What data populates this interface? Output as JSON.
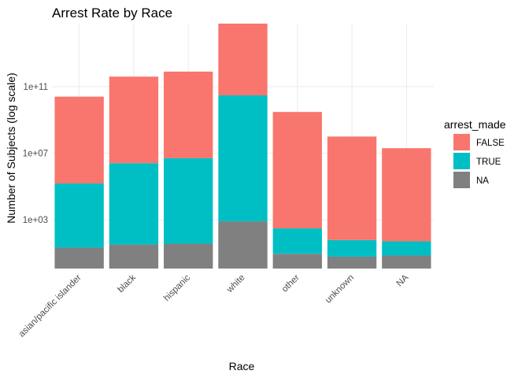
{
  "chart_data": {
    "type": "bar",
    "stacked": true,
    "title": "Arrest Rate by Race",
    "xlabel": "Race",
    "ylabel": "Number of Subjects (log scale)",
    "yscale": "log10",
    "ylim": [
      1,
      30000000000000
    ],
    "yticks": [
      {
        "value": 1000,
        "label": "1e+03"
      },
      {
        "value": 10000000,
        "label": "1e+07"
      },
      {
        "value": 100000000000,
        "label": "1e+11"
      }
    ],
    "categories": [
      "asian/pacific islander",
      "black",
      "hispanic",
      "white",
      "other",
      "unknown",
      "NA"
    ],
    "series": [
      {
        "name": "NA",
        "color": "#808080",
        "cumulative_top": [
          21,
          32,
          36,
          800,
          9,
          6,
          7
        ]
      },
      {
        "name": "TRUE",
        "color": "#00BFC4",
        "cumulative_top": [
          150000,
          2500000,
          5000000,
          30000000000,
          300,
          60,
          50
        ]
      },
      {
        "name": "FALSE",
        "color": "#F8766D",
        "cumulative_top": [
          25000000000,
          400000000000,
          800000000000,
          1500000000000000,
          3000000000,
          100000000,
          20000000
        ]
      }
    ],
    "legend": {
      "title": "arrest_made",
      "placement": "right",
      "order": [
        "FALSE",
        "TRUE",
        "NA"
      ]
    },
    "grid": true
  }
}
